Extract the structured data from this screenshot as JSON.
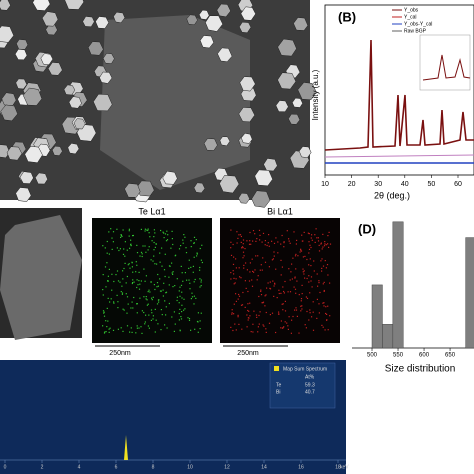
{
  "panel_b": {
    "label": "(B)",
    "y_label": "Intensity (a.u.)",
    "x_label": "2θ (deg.)",
    "x_ticks": [
      10,
      20,
      30,
      40,
      50,
      60
    ],
    "legend": [
      "Y_obs",
      "Y_cal",
      "Y_obs-Y_cal",
      "Raw BGP"
    ]
  },
  "panel_c": {
    "maps": [
      "Te Lα1",
      "Bi Lα1"
    ],
    "scale_bars": [
      "250nm",
      "250nm"
    ]
  },
  "panel_e": {
    "title": "Map Sum Spectrum",
    "column": "At%",
    "elements": [
      "Te",
      "Bi"
    ],
    "values": [
      "59.3",
      "40.7"
    ],
    "x_ticks": [
      0,
      2,
      4,
      6,
      8,
      10,
      12,
      14,
      16,
      18
    ],
    "unit": "keV"
  },
  "panel_d": {
    "label": "(D)",
    "x_label": "Size distribution",
    "histogram": {
      "type": "histogram",
      "bins": [
        500,
        520,
        540,
        560,
        580,
        600,
        620,
        640,
        660,
        680,
        700
      ],
      "counts": [
        16,
        6,
        32,
        0,
        0,
        0,
        0,
        0,
        0,
        28
      ],
      "xlim": [
        475,
        696
      ],
      "ylim": [
        0,
        35
      ],
      "xticks": [
        500,
        550,
        600,
        650
      ],
      "color": "#7f7f7f"
    }
  }
}
